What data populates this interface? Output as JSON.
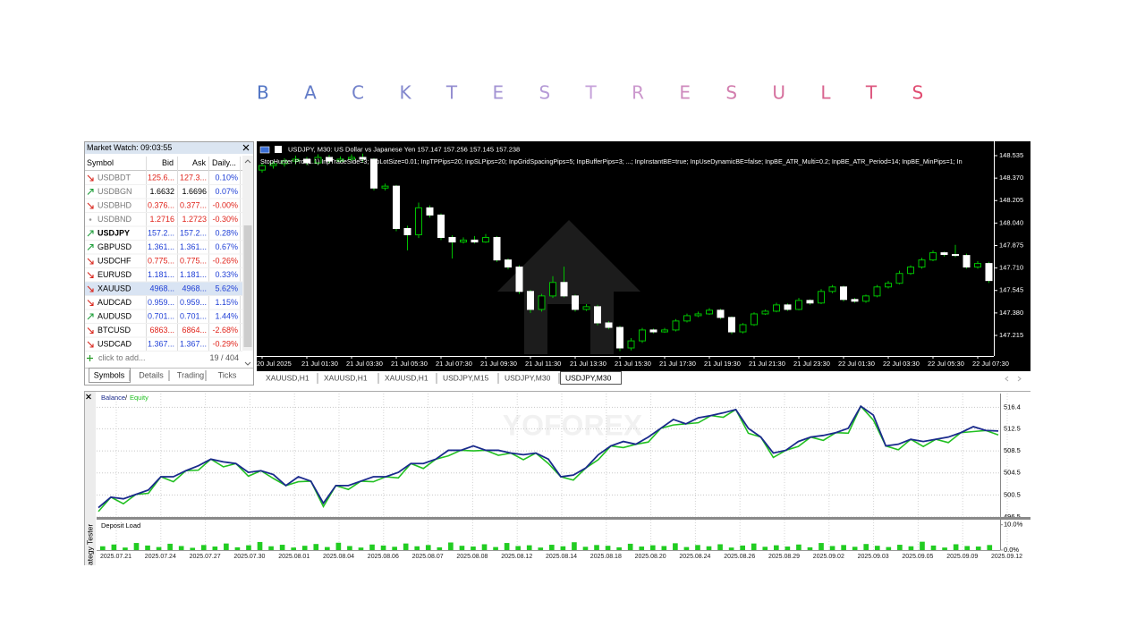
{
  "title": "B A C K T E S T R E S U L T S",
  "market_watch": {
    "title": "Market Watch: 09:03:55",
    "columns": [
      "Symbol",
      "Bid",
      "Ask",
      "Daily..."
    ],
    "rows": [
      {
        "symbol": "USDBDT",
        "bid": "125.6...",
        "ask": "127.3...",
        "daily": "0.10%",
        "trend": "down",
        "muted": true,
        "bold": false,
        "selected": false,
        "price_color": "red"
      },
      {
        "symbol": "USDBGN",
        "bid": "1.6632",
        "ask": "1.6696",
        "daily": "0.07%",
        "trend": "up",
        "muted": true,
        "bold": false,
        "selected": false,
        "price_color": "black"
      },
      {
        "symbol": "USDBHD",
        "bid": "0.376...",
        "ask": "0.377...",
        "daily": "-0.00%",
        "trend": "down",
        "muted": true,
        "bold": false,
        "selected": false,
        "price_color": "red"
      },
      {
        "symbol": "USDBND",
        "bid": "1.2716",
        "ask": "1.2723",
        "daily": "-0.30%",
        "trend": "flat",
        "muted": true,
        "bold": false,
        "selected": false,
        "price_color": "red"
      },
      {
        "symbol": "USDJPY",
        "bid": "157.2...",
        "ask": "157.2...",
        "daily": "0.28%",
        "trend": "up",
        "muted": false,
        "bold": true,
        "selected": false,
        "price_color": "blue"
      },
      {
        "symbol": "GBPUSD",
        "bid": "1.361...",
        "ask": "1.361...",
        "daily": "0.67%",
        "trend": "up",
        "muted": false,
        "bold": false,
        "selected": false,
        "price_color": "blue"
      },
      {
        "symbol": "USDCHF",
        "bid": "0.775...",
        "ask": "0.775...",
        "daily": "-0.26%",
        "trend": "down",
        "muted": false,
        "bold": false,
        "selected": false,
        "price_color": "red"
      },
      {
        "symbol": "EURUSD",
        "bid": "1.181...",
        "ask": "1.181...",
        "daily": "0.33%",
        "trend": "down",
        "muted": false,
        "bold": false,
        "selected": false,
        "price_color": "blue"
      },
      {
        "symbol": "XAUUSD",
        "bid": "4968...",
        "ask": "4968...",
        "daily": "5.62%",
        "trend": "down",
        "muted": false,
        "bold": false,
        "selected": true,
        "price_color": "blue"
      },
      {
        "symbol": "AUDCAD",
        "bid": "0.959...",
        "ask": "0.959...",
        "daily": "1.15%",
        "trend": "down",
        "muted": false,
        "bold": false,
        "selected": false,
        "price_color": "blue"
      },
      {
        "symbol": "AUDUSD",
        "bid": "0.701...",
        "ask": "0.701...",
        "daily": "1.44%",
        "trend": "up",
        "muted": false,
        "bold": false,
        "selected": false,
        "price_color": "blue"
      },
      {
        "symbol": "BTCUSD",
        "bid": "6863...",
        "ask": "6864...",
        "daily": "-2.68%",
        "trend": "down",
        "muted": false,
        "bold": false,
        "selected": false,
        "price_color": "red"
      },
      {
        "symbol": "USDCAD",
        "bid": "1.367...",
        "ask": "1.367...",
        "daily": "-0.29%",
        "trend": "down",
        "muted": false,
        "bold": false,
        "selected": false,
        "price_color": "blue"
      }
    ],
    "add_text": "click to add...",
    "count": "19 / 404",
    "tabs": [
      "Symbols",
      "Details",
      "Trading",
      "Ticks"
    ],
    "active_tab": 0
  },
  "price_chart": {
    "type": "candlestick",
    "header": "USDJPY, M30:  US Dollar vs Japanese Yen  157.147 157.256 157.145 157.238",
    "params": "StopHunter Pro (1.1)   InpTradeSide=3; InpLotSize=0.01; InpTPPips=20; InpSLPips=20; InpGridSpacingPips=5; InpBufferPips=3; ...; InpInstantBE=true; InpUseDynamicBE=false; InpBE_ATR_Multi=0.2; InpBE_ATR_Period=14; InpBE_MinPips=1; In",
    "categories": [
      "20 Jul 2025",
      null,
      null,
      null,
      "21 Jul 01:30",
      null,
      null,
      null,
      "21 Jul 03:30",
      null,
      null,
      null,
      "21 Jul 05:30",
      null,
      null,
      null,
      "21 Jul 07:30",
      null,
      null,
      null,
      "21 Jul 09:30",
      null,
      null,
      null,
      "21 Jul 11:30",
      null,
      null,
      null,
      "21 Jul 13:30",
      null,
      null,
      null,
      "21 Jul 15:30",
      null,
      null,
      null,
      "21 Jul 17:30",
      null,
      null,
      null,
      "21 Jul 19:30",
      null,
      null,
      null,
      "21 Jul 21:30",
      null,
      null,
      null,
      "21 Jul 23:30",
      null,
      null,
      null,
      "22 Jul 01:30",
      null,
      null,
      null,
      "22 Jul 03:30",
      null,
      null,
      null,
      "22 Jul 05:30",
      null,
      null,
      null,
      "22 Jul 07:30",
      null
    ],
    "open": [
      148.429,
      148.462,
      148.476,
      148.495,
      148.509,
      148.482,
      148.522,
      148.495,
      148.509,
      148.522,
      148.509,
      148.297,
      148.311,
      148.0,
      147.954,
      148.152,
      148.099,
      147.934,
      147.901,
      147.915,
      147.901,
      147.934,
      147.769,
      147.717,
      147.538,
      147.406,
      147.505,
      147.604,
      147.505,
      147.406,
      147.426,
      147.307,
      147.274,
      147.123,
      147.175,
      147.255,
      147.241,
      147.255,
      147.321,
      147.36,
      147.373,
      147.4,
      147.347,
      147.241,
      147.294,
      147.373,
      147.393,
      147.439,
      147.406,
      147.472,
      147.453,
      147.538,
      147.571,
      147.479,
      147.466,
      147.505,
      147.571,
      147.598,
      147.67,
      147.717,
      147.769,
      147.822,
      147.809,
      147.802,
      147.717,
      147.743
    ],
    "high": [
      148.482,
      148.495,
      148.515,
      148.535,
      148.525,
      148.545,
      148.54,
      148.53,
      148.545,
      148.55,
      148.515,
      148.33,
      148.32,
      148.02,
      148.19,
      148.17,
      148.11,
      147.95,
      147.935,
      147.945,
      147.96,
      147.945,
      147.78,
      147.73,
      147.55,
      147.52,
      147.65,
      147.72,
      147.515,
      147.445,
      147.44,
      147.32,
      147.285,
      147.195,
      147.27,
      147.265,
      147.27,
      147.335,
      147.375,
      147.39,
      147.415,
      147.41,
      147.355,
      147.305,
      147.385,
      147.405,
      147.455,
      147.45,
      147.49,
      147.48,
      147.555,
      147.585,
      147.58,
      147.49,
      147.515,
      147.585,
      147.615,
      147.69,
      147.73,
      147.785,
      147.84,
      147.83,
      147.88,
      147.815,
      147.76,
      147.755
    ],
    "low": [
      148.41,
      148.44,
      148.455,
      148.47,
      148.465,
      148.47,
      148.48,
      148.485,
      148.495,
      148.49,
      148.28,
      148.28,
      147.98,
      147.84,
      147.93,
      148.08,
      147.915,
      147.78,
      147.89,
      147.89,
      147.895,
      147.755,
      147.7,
      147.52,
      147.38,
      147.39,
      147.49,
      147.495,
      147.39,
      147.395,
      147.29,
      147.26,
      147.1,
      147.105,
      147.16,
      147.23,
      147.235,
      147.245,
      147.31,
      147.35,
      147.365,
      147.335,
      147.225,
      147.23,
      147.285,
      147.365,
      147.385,
      147.395,
      147.4,
      147.44,
      147.445,
      147.525,
      147.465,
      147.455,
      147.455,
      147.495,
      147.56,
      147.59,
      147.66,
      147.705,
      147.76,
      147.795,
      147.79,
      147.705,
      147.705,
      147.6
    ],
    "close": [
      148.462,
      148.476,
      148.495,
      148.509,
      148.482,
      148.522,
      148.495,
      148.509,
      148.522,
      148.509,
      148.297,
      148.311,
      148.0,
      147.954,
      148.152,
      148.099,
      147.934,
      147.901,
      147.915,
      147.901,
      147.934,
      147.769,
      147.717,
      147.538,
      147.406,
      147.505,
      147.604,
      147.505,
      147.406,
      147.426,
      147.307,
      147.274,
      147.123,
      147.175,
      147.255,
      147.241,
      147.255,
      147.321,
      147.36,
      147.373,
      147.4,
      147.347,
      147.241,
      147.294,
      147.373,
      147.393,
      147.439,
      147.406,
      147.472,
      147.453,
      147.538,
      147.571,
      147.479,
      147.466,
      147.505,
      147.571,
      147.598,
      147.67,
      147.717,
      147.769,
      147.822,
      147.809,
      147.802,
      147.717,
      147.743,
      147.618
    ],
    "ylim": [
      147.064,
      148.627
    ],
    "yticks": [
      148.535,
      {
        "value": 148.37,
        "label": "148.370"
      },
      148.205,
      {
        "value": 148.04,
        "label": "148.040"
      },
      147.875,
      {
        "value": 147.71,
        "label": "147.710"
      },
      147.545,
      {
        "value": 147.38,
        "label": "147.380"
      },
      147.215
    ],
    "wick_color": "#00c000",
    "bull_color": "#000000",
    "bear_color": "#ffffff",
    "tabs": [
      "XAUUSD,H1",
      "XAUUSD,H1",
      "XAUUSD,H1",
      "USDJPY,M15",
      "USDJPY,M30",
      "USDJPY,M30"
    ],
    "active_tab": 5
  },
  "tester": {
    "type": "line",
    "side_label": "ategy Tester",
    "watermark": "YOFOREX",
    "legend_separator": "/",
    "series": [
      {
        "name": "Balance",
        "color": "#1a2a8c",
        "values": [
          498.2,
          500.1,
          499.8,
          500.6,
          501.4,
          503.8,
          503.8,
          504.9,
          505.8,
          507.0,
          506.5,
          506.2,
          504.6,
          504.9,
          504.2,
          502.2,
          503.8,
          503.0,
          499.0,
          502.2,
          502.2,
          503.0,
          503.8,
          503.8,
          504.6,
          506.2,
          506.2,
          507.0,
          508.6,
          508.6,
          509.4,
          508.6,
          508.6,
          508.1,
          507.8,
          508.1,
          507.0,
          503.8,
          504.1,
          505.4,
          507.8,
          509.4,
          510.2,
          509.7,
          511.0,
          512.6,
          514.2,
          513.4,
          514.5,
          514.9,
          515.4,
          516.0,
          512.6,
          511.0,
          508.1,
          508.6,
          510.2,
          511.0,
          511.3,
          511.8,
          512.6,
          516.6,
          515.0,
          509.4,
          509.7,
          510.6,
          510.2,
          510.6,
          511.0,
          511.8,
          512.9,
          512.2,
          512.1
        ]
      },
      {
        "name": "Equity",
        "color": "#22c022",
        "values": [
          497.5,
          500.1,
          498.9,
          500.6,
          500.8,
          503.8,
          502.9,
          504.9,
          505.0,
          507.0,
          505.6,
          506.2,
          503.9,
          504.9,
          503.5,
          502.2,
          502.9,
          503.0,
          498.4,
          502.2,
          501.5,
          503.0,
          502.9,
          503.8,
          503.6,
          506.2,
          505.3,
          507.0,
          507.6,
          508.6,
          508.5,
          508.6,
          507.7,
          508.1,
          506.9,
          508.1,
          506.2,
          503.8,
          503.2,
          505.4,
          506.9,
          509.4,
          509.1,
          509.7,
          510.1,
          512.6,
          513.2,
          513.4,
          513.6,
          514.9,
          514.6,
          516.0,
          511.7,
          511.0,
          507.3,
          508.6,
          509.3,
          511.0,
          510.4,
          511.8,
          511.7,
          516.6,
          514.1,
          509.4,
          508.7,
          510.6,
          509.3,
          510.6,
          510.0,
          511.8,
          512.0,
          512.2,
          511.4
        ]
      }
    ],
    "ylim": [
      496.5,
      518.9
    ],
    "yticks": [
      516.4,
      512.5,
      508.5,
      504.5,
      500.5,
      496.5
    ],
    "grid": true,
    "dates": [
      "2025.07.21",
      "2025.07.24",
      "2025.07.27",
      "2025.07.30",
      "2025.08.01",
      "2025.08.04",
      "2025.08.06",
      "2025.08.07",
      "2025.08.08",
      "2025.08.12",
      "2025.08.14",
      "2025.08.18",
      "2025.08.20",
      "2025.08.24",
      "2025.08.26",
      "2025.08.29",
      "2025.09.02",
      "2025.09.03",
      "2025.09.05",
      "2025.09.09",
      "2025.09.12"
    ],
    "deposit_load": {
      "type": "bar",
      "title": "Deposit Load",
      "color": "#22cc22",
      "values": [
        1.5,
        2.2,
        1.0,
        2.8,
        1.8,
        1.2,
        2.5,
        1.6,
        0.9,
        2.0,
        1.4,
        2.6,
        1.1,
        1.9,
        3.2,
        1.5,
        2.1,
        1.0,
        1.7,
        2.4,
        1.2,
        2.9,
        1.6,
        1.0,
        2.2,
        1.8,
        1.3,
        2.6,
        1.5,
        2.0,
        1.1,
        3.0,
        1.7,
        1.4,
        2.3,
        1.2,
        2.8,
        1.6,
        1.9,
        1.0,
        2.1,
        1.5,
        3.1,
        1.3,
        2.0,
        1.7,
        1.1,
        2.5,
        1.4,
        1.9,
        1.6,
        2.7,
        1.2,
        2.0,
        1.5,
        2.3,
        1.0,
        1.8,
        2.6,
        1.3,
        1.9,
        1.4,
        2.2,
        1.1,
        2.8,
        1.6,
        2.0,
        1.3,
        2.4,
        1.7,
        1.2,
        2.1,
        1.5,
        3.3,
        1.8,
        1.0,
        2.3,
        1.6,
        1.4,
        2.0
      ],
      "ylim": [
        0,
        12
      ],
      "yticks": [
        {
          "value": 10,
          "label": "10.0%"
        },
        {
          "value": 0,
          "label": "0.0%"
        }
      ]
    }
  }
}
